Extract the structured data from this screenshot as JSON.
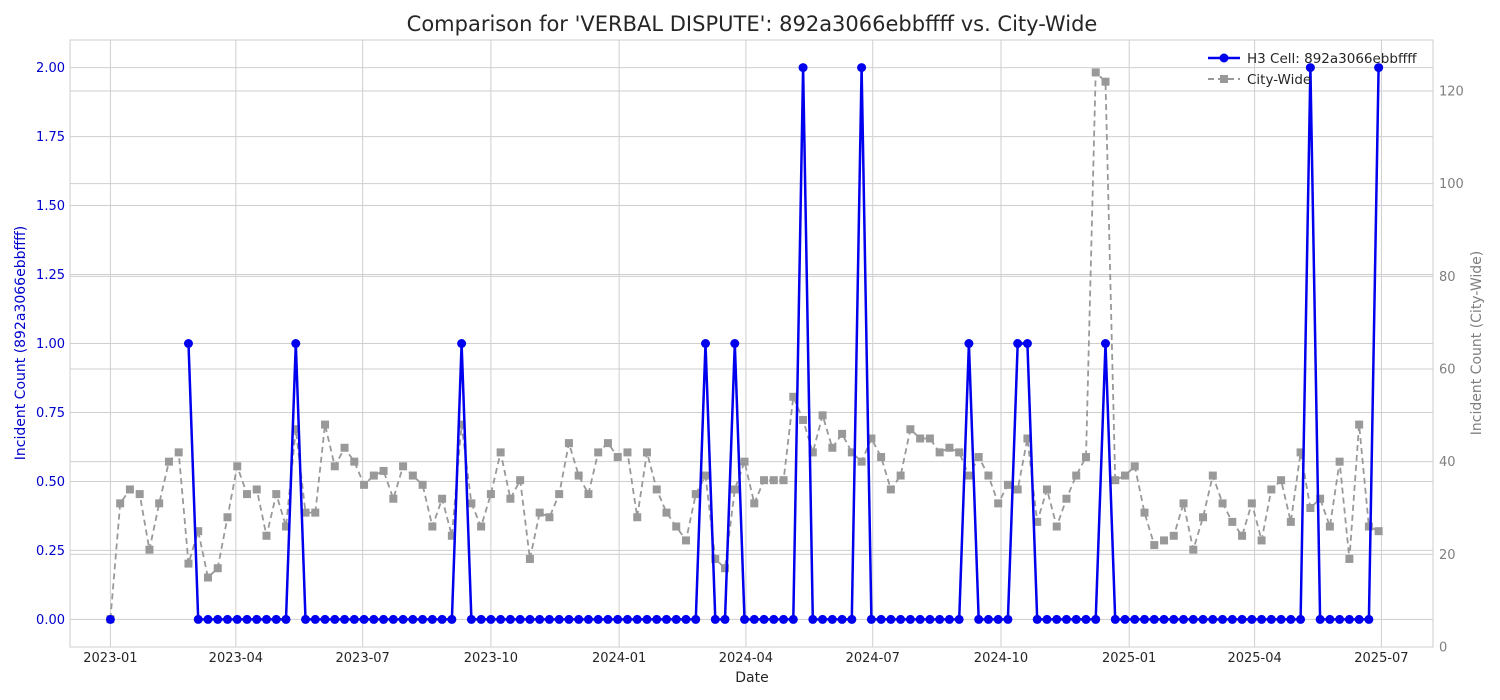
{
  "chart_data": {
    "type": "line",
    "title": "Comparison for 'VERBAL DISPUTE': 892a3066ebbffff vs. City-Wide",
    "xlabel": "Date",
    "ylabel_left": "Incident Count (892a3066ebbffff)",
    "ylabel_right": "Incident Count (City-Wide)",
    "ylim_left": [
      -0.1,
      2.1
    ],
    "ylim_right": [
      0,
      131
    ],
    "yticks_left": [
      "0.00",
      "0.25",
      "0.50",
      "0.75",
      "1.00",
      "1.25",
      "1.50",
      "1.75",
      "2.00"
    ],
    "yticks_right": [
      "0",
      "20",
      "40",
      "60",
      "80",
      "100",
      "120"
    ],
    "xlim": [
      "2022-12-03",
      "2025-08-07"
    ],
    "xticks": [
      "2023-01",
      "2023-04",
      "2023-07",
      "2023-10",
      "2024-01",
      "2024-04",
      "2024-07",
      "2024-10",
      "2025-01",
      "2025-04",
      "2025-07"
    ],
    "grid": true,
    "legend": "top-right",
    "colors": {
      "h3": "#0000ee",
      "city": "#999999",
      "left_axis": "#0000cc",
      "right_axis": "#7f7f7f"
    },
    "series": [
      {
        "name": "H3 Cell: 892a3066ebbffff",
        "axis": "left",
        "marker": "circle",
        "x": [
          "2023-01-01",
          "2023-01-08",
          "2023-01-15",
          "2023-01-22",
          "2023-01-29",
          "2023-02-05",
          "2023-02-12",
          "2023-02-19",
          "2023-02-26",
          "2023-03-05",
          "2023-03-12",
          "2023-03-19",
          "2023-03-26",
          "2023-04-02",
          "2023-04-09",
          "2023-04-16",
          "2023-04-23",
          "2023-04-30",
          "2023-05-07",
          "2023-05-14",
          "2023-05-21",
          "2023-05-28",
          "2023-06-04",
          "2023-06-11",
          "2023-06-18",
          "2023-06-25",
          "2023-07-02",
          "2023-07-09",
          "2023-07-16",
          "2023-07-23",
          "2023-07-30",
          "2023-08-06",
          "2023-08-13",
          "2023-08-20",
          "2023-08-27",
          "2023-09-03",
          "2023-09-10",
          "2023-09-17",
          "2023-09-24",
          "2023-10-01",
          "2023-10-08",
          "2023-10-15",
          "2023-10-22",
          "2023-10-29",
          "2023-11-05",
          "2023-11-12",
          "2023-11-19",
          "2023-11-26",
          "2023-12-03",
          "2023-12-10",
          "2023-12-17",
          "2023-12-24",
          "2023-12-31",
          "2024-01-07",
          "2024-01-14",
          "2024-01-21",
          "2024-01-28",
          "2024-02-04",
          "2024-02-11",
          "2024-02-18",
          "2024-02-25",
          "2024-03-03",
          "2024-03-10",
          "2024-03-17",
          "2024-03-24",
          "2024-03-31",
          "2024-04-07",
          "2024-04-14",
          "2024-04-21",
          "2024-04-28",
          "2024-05-05",
          "2024-05-12",
          "2024-05-19",
          "2024-05-26",
          "2024-06-02",
          "2024-06-09",
          "2024-06-16",
          "2024-06-23",
          "2024-06-30",
          "2024-07-07",
          "2024-07-14",
          "2024-07-21",
          "2024-07-28",
          "2024-08-04",
          "2024-08-11",
          "2024-08-18",
          "2024-08-25",
          "2024-09-01",
          "2024-09-08",
          "2024-09-15",
          "2024-09-22",
          "2024-09-29",
          "2024-10-06",
          "2024-10-13",
          "2024-10-20",
          "2024-10-27",
          "2024-11-03",
          "2024-11-10",
          "2024-11-17",
          "2024-11-24",
          "2024-12-01",
          "2024-12-08",
          "2024-12-15",
          "2024-12-22",
          "2024-12-29",
          "2025-01-05",
          "2025-01-12",
          "2025-01-19",
          "2025-01-26",
          "2025-02-02",
          "2025-02-09",
          "2025-02-16",
          "2025-02-23",
          "2025-03-02",
          "2025-03-09",
          "2025-03-16",
          "2025-03-23",
          "2025-03-30",
          "2025-04-06",
          "2025-04-13",
          "2025-04-20",
          "2025-04-27",
          "2025-05-04",
          "2025-05-11",
          "2025-05-18",
          "2025-05-25",
          "2025-06-01",
          "2025-06-08",
          "2025-06-15",
          "2025-06-22",
          "2025-06-29"
        ],
        "values": [
          0,
          null,
          null,
          null,
          null,
          null,
          null,
          null,
          1,
          0,
          0,
          0,
          0,
          0,
          0,
          0,
          0,
          0,
          0,
          1,
          0,
          0,
          0,
          0,
          0,
          0,
          0,
          0,
          0,
          0,
          0,
          0,
          0,
          0,
          0,
          0,
          1,
          0,
          0,
          0,
          0,
          0,
          0,
          0,
          0,
          0,
          0,
          0,
          0,
          0,
          0,
          0,
          0,
          0,
          0,
          0,
          0,
          0,
          0,
          0,
          0,
          1,
          0,
          0,
          1,
          0,
          0,
          0,
          0,
          0,
          0,
          2,
          0,
          0,
          0,
          0,
          0,
          2,
          0,
          0,
          0,
          0,
          0,
          0,
          0,
          0,
          0,
          0,
          1,
          0,
          0,
          0,
          0,
          1,
          1,
          0,
          0,
          0,
          0,
          0,
          0,
          0,
          1,
          0,
          0,
          0,
          0,
          0,
          0,
          0,
          0,
          0,
          0,
          0,
          0,
          0,
          0,
          0,
          0,
          0,
          0,
          0,
          0,
          2,
          0,
          0,
          0,
          0,
          0,
          0,
          2
        ]
      },
      {
        "name": "City-Wide",
        "axis": "right",
        "marker": "square",
        "x": [
          "2023-01-01",
          "2023-01-08",
          "2023-01-15",
          "2023-01-22",
          "2023-01-29",
          "2023-02-05",
          "2023-02-12",
          "2023-02-19",
          "2023-02-26",
          "2023-03-05",
          "2023-03-12",
          "2023-03-19",
          "2023-03-26",
          "2023-04-02",
          "2023-04-09",
          "2023-04-16",
          "2023-04-23",
          "2023-04-30",
          "2023-05-07",
          "2023-05-14",
          "2023-05-21",
          "2023-05-28",
          "2023-06-04",
          "2023-06-11",
          "2023-06-18",
          "2023-06-25",
          "2023-07-02",
          "2023-07-09",
          "2023-07-16",
          "2023-07-23",
          "2023-07-30",
          "2023-08-06",
          "2023-08-13",
          "2023-08-20",
          "2023-08-27",
          "2023-09-03",
          "2023-09-10",
          "2023-09-17",
          "2023-09-24",
          "2023-10-01",
          "2023-10-08",
          "2023-10-15",
          "2023-10-22",
          "2023-10-29",
          "2023-11-05",
          "2023-11-12",
          "2023-11-19",
          "2023-11-26",
          "2023-12-03",
          "2023-12-10",
          "2023-12-17",
          "2023-12-24",
          "2023-12-31",
          "2024-01-07",
          "2024-01-14",
          "2024-01-21",
          "2024-01-28",
          "2024-02-04",
          "2024-02-11",
          "2024-02-18",
          "2024-02-25",
          "2024-03-03",
          "2024-03-10",
          "2024-03-17",
          "2024-03-24",
          "2024-03-31",
          "2024-04-07",
          "2024-04-14",
          "2024-04-21",
          "2024-04-28",
          "2024-05-05",
          "2024-05-12",
          "2024-05-19",
          "2024-05-26",
          "2024-06-02",
          "2024-06-09",
          "2024-06-16",
          "2024-06-23",
          "2024-06-30",
          "2024-07-07",
          "2024-07-14",
          "2024-07-21",
          "2024-07-28",
          "2024-08-04",
          "2024-08-11",
          "2024-08-18",
          "2024-08-25",
          "2024-09-01",
          "2024-09-08",
          "2024-09-15",
          "2024-09-22",
          "2024-09-29",
          "2024-10-06",
          "2024-10-13",
          "2024-10-20",
          "2024-10-27",
          "2024-11-03",
          "2024-11-10",
          "2024-11-17",
          "2024-11-24",
          "2024-12-01",
          "2024-12-08",
          "2024-12-15",
          "2024-12-22",
          "2024-12-29",
          "2025-01-05",
          "2025-01-12",
          "2025-01-19",
          "2025-01-26",
          "2025-02-02",
          "2025-02-09",
          "2025-02-16",
          "2025-02-23",
          "2025-03-02",
          "2025-03-09",
          "2025-03-16",
          "2025-03-23",
          "2025-03-30",
          "2025-04-06",
          "2025-04-13",
          "2025-04-20",
          "2025-04-27",
          "2025-05-04",
          "2025-05-11",
          "2025-05-18",
          "2025-05-25",
          "2025-06-01",
          "2025-06-08",
          "2025-06-15",
          "2025-06-22",
          "2025-06-29"
        ],
        "values": [
          6,
          31,
          34,
          33,
          21,
          31,
          40,
          42,
          18,
          25,
          15,
          17,
          28,
          39,
          33,
          34,
          24,
          33,
          26,
          47,
          29,
          29,
          48,
          39,
          43,
          40,
          35,
          37,
          38,
          32,
          39,
          37,
          35,
          26,
          32,
          24,
          48,
          31,
          26,
          33,
          42,
          32,
          36,
          19,
          29,
          28,
          33,
          44,
          37,
          33,
          42,
          44,
          41,
          42,
          28,
          42,
          34,
          29,
          26,
          23,
          33,
          37,
          19,
          17,
          34,
          40,
          31,
          36,
          36,
          36,
          54,
          49,
          42,
          50,
          43,
          46,
          42,
          40,
          45,
          41,
          34,
          37,
          47,
          45,
          45,
          42,
          43,
          42,
          37,
          41,
          37,
          31,
          35,
          34,
          45,
          27,
          34,
          26,
          32,
          37,
          41,
          124,
          122,
          36,
          37,
          39,
          29,
          22,
          23,
          24,
          31,
          21,
          28,
          37,
          31,
          27,
          24,
          31,
          23,
          34,
          36,
          27,
          42,
          30,
          32,
          26,
          40,
          19,
          48,
          26,
          25
        ]
      }
    ]
  }
}
